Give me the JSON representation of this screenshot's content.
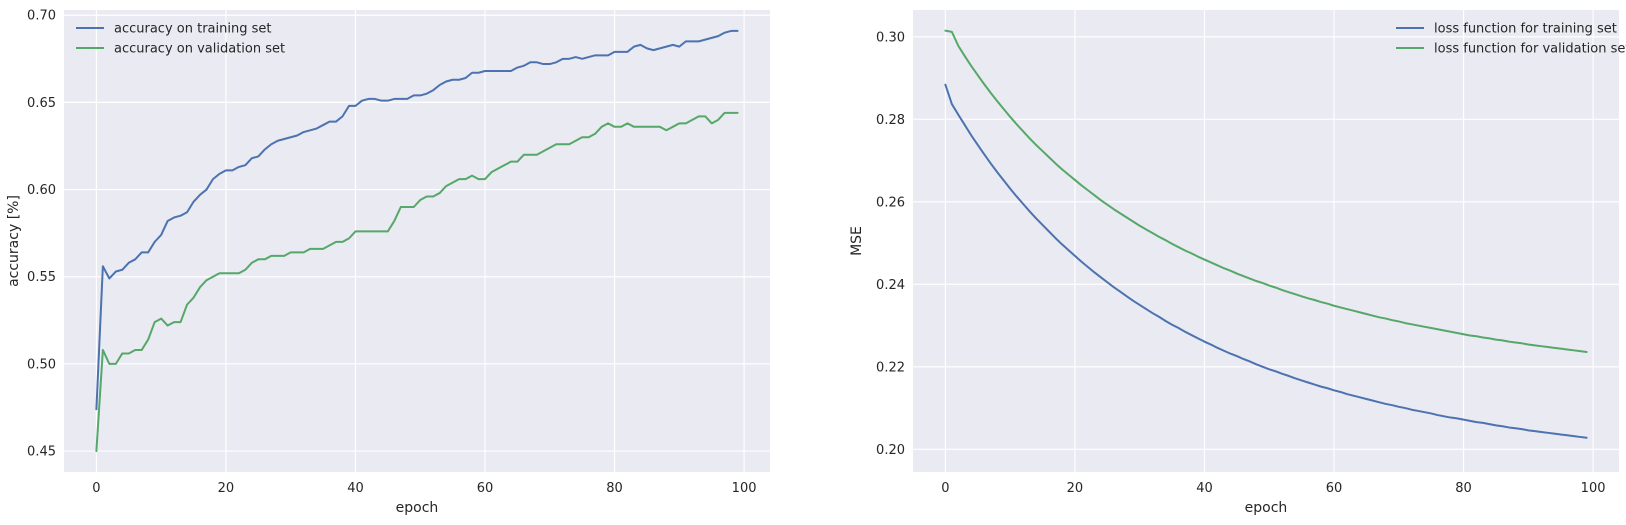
{
  "colors": {
    "background": "#eaeaf2",
    "grid": "#ffffff",
    "training": "#4c72b0",
    "validation": "#55a868"
  },
  "chart_data": [
    {
      "type": "line",
      "grid": true,
      "legend_position": "top-left",
      "xlabel": "epoch",
      "ylabel": "accuracy [%]",
      "xlim": [
        -5,
        104
      ],
      "ylim": [
        0.438,
        0.703
      ],
      "xticks": [
        0,
        20,
        40,
        60,
        80,
        100
      ],
      "xtick_labels": [
        "0",
        "20",
        "40",
        "60",
        "80",
        "100"
      ],
      "yticks": [
        0.45,
        0.5,
        0.55,
        0.6,
        0.65,
        0.7
      ],
      "ytick_labels": [
        "0.45",
        "0.50",
        "0.55",
        "0.60",
        "0.65",
        "0.70"
      ],
      "x": [
        0,
        1,
        2,
        3,
        4,
        5,
        6,
        7,
        8,
        9,
        10,
        11,
        12,
        13,
        14,
        15,
        16,
        17,
        18,
        19,
        20,
        21,
        22,
        23,
        24,
        25,
        26,
        27,
        28,
        29,
        30,
        31,
        32,
        33,
        34,
        35,
        36,
        37,
        38,
        39,
        40,
        41,
        42,
        43,
        44,
        45,
        46,
        47,
        48,
        49,
        50,
        51,
        52,
        53,
        54,
        55,
        56,
        57,
        58,
        59,
        60,
        61,
        62,
        63,
        64,
        65,
        66,
        67,
        68,
        69,
        70,
        71,
        72,
        73,
        74,
        75,
        76,
        77,
        78,
        79,
        80,
        81,
        82,
        83,
        84,
        85,
        86,
        87,
        88,
        89,
        90,
        91,
        92,
        93,
        94,
        95,
        96,
        97,
        98,
        99
      ],
      "series": [
        {
          "name": "accuracy on training set",
          "color_key": "training",
          "values": [
            0.474,
            0.556,
            0.549,
            0.553,
            0.554,
            0.558,
            0.56,
            0.564,
            0.564,
            0.57,
            0.574,
            0.582,
            0.584,
            0.585,
            0.587,
            0.593,
            0.597,
            0.6,
            0.606,
            0.609,
            0.611,
            0.611,
            0.613,
            0.614,
            0.618,
            0.619,
            0.623,
            0.626,
            0.628,
            0.629,
            0.63,
            0.631,
            0.633,
            0.634,
            0.635,
            0.637,
            0.639,
            0.639,
            0.642,
            0.648,
            0.648,
            0.651,
            0.652,
            0.652,
            0.651,
            0.651,
            0.652,
            0.652,
            0.652,
            0.654,
            0.654,
            0.655,
            0.657,
            0.66,
            0.662,
            0.663,
            0.663,
            0.664,
            0.667,
            0.667,
            0.668,
            0.668,
            0.668,
            0.668,
            0.668,
            0.67,
            0.671,
            0.673,
            0.673,
            0.672,
            0.672,
            0.673,
            0.675,
            0.675,
            0.676,
            0.675,
            0.676,
            0.677,
            0.677,
            0.677,
            0.679,
            0.679,
            0.679,
            0.682,
            0.683,
            0.681,
            0.68,
            0.681,
            0.682,
            0.683,
            0.682,
            0.685,
            0.685,
            0.685,
            0.686,
            0.687,
            0.688,
            0.69,
            0.691,
            0.691
          ]
        },
        {
          "name": "accuracy on validation set",
          "color_key": "validation",
          "values": [
            0.45,
            0.508,
            0.5,
            0.5,
            0.506,
            0.506,
            0.508,
            0.508,
            0.514,
            0.524,
            0.526,
            0.522,
            0.524,
            0.524,
            0.534,
            0.538,
            0.544,
            0.548,
            0.55,
            0.552,
            0.552,
            0.552,
            0.552,
            0.554,
            0.558,
            0.56,
            0.56,
            0.562,
            0.562,
            0.562,
            0.564,
            0.564,
            0.564,
            0.566,
            0.566,
            0.566,
            0.568,
            0.57,
            0.57,
            0.572,
            0.576,
            0.576,
            0.576,
            0.576,
            0.576,
            0.576,
            0.582,
            0.59,
            0.59,
            0.59,
            0.594,
            0.596,
            0.596,
            0.598,
            0.602,
            0.604,
            0.606,
            0.606,
            0.608,
            0.606,
            0.606,
            0.61,
            0.612,
            0.614,
            0.616,
            0.616,
            0.62,
            0.62,
            0.62,
            0.622,
            0.624,
            0.626,
            0.626,
            0.626,
            0.628,
            0.63,
            0.63,
            0.632,
            0.636,
            0.638,
            0.636,
            0.636,
            0.638,
            0.636,
            0.636,
            0.636,
            0.636,
            0.636,
            0.634,
            0.636,
            0.638,
            0.638,
            0.64,
            0.642,
            0.642,
            0.638,
            0.64,
            0.644,
            0.644,
            0.644
          ]
        }
      ]
    },
    {
      "type": "line",
      "grid": true,
      "legend_position": "top-right",
      "xlabel": "epoch",
      "ylabel": "MSE",
      "xlim": [
        -5,
        104
      ],
      "ylim": [
        0.1945,
        0.3065
      ],
      "xticks": [
        0,
        20,
        40,
        60,
        80,
        100
      ],
      "xtick_labels": [
        "0",
        "20",
        "40",
        "60",
        "80",
        "100"
      ],
      "yticks": [
        0.2,
        0.22,
        0.24,
        0.26,
        0.28,
        0.3
      ],
      "ytick_labels": [
        "0.20",
        "0.22",
        "0.24",
        "0.26",
        "0.28",
        "0.30"
      ],
      "x": [
        0,
        1,
        2,
        3,
        4,
        5,
        6,
        7,
        8,
        9,
        10,
        11,
        12,
        13,
        14,
        15,
        16,
        17,
        18,
        19,
        20,
        21,
        22,
        23,
        24,
        25,
        26,
        27,
        28,
        29,
        30,
        31,
        32,
        33,
        34,
        35,
        36,
        37,
        38,
        39,
        40,
        41,
        42,
        43,
        44,
        45,
        46,
        47,
        48,
        49,
        50,
        51,
        52,
        53,
        54,
        55,
        56,
        57,
        58,
        59,
        60,
        61,
        62,
        63,
        64,
        65,
        66,
        67,
        68,
        69,
        70,
        71,
        72,
        73,
        74,
        75,
        76,
        77,
        78,
        79,
        80,
        81,
        82,
        83,
        84,
        85,
        86,
        87,
        88,
        89,
        90,
        91,
        92,
        93,
        94,
        95,
        96,
        97,
        98,
        99
      ],
      "series": [
        {
          "name": "loss function for training set",
          "color_key": "training",
          "values": [
            0.2884,
            0.2837,
            0.2811,
            0.2786,
            0.2761,
            0.2738,
            0.2715,
            0.2693,
            0.2672,
            0.2652,
            0.2632,
            0.2613,
            0.2595,
            0.2577,
            0.256,
            0.2544,
            0.2528,
            0.2512,
            0.2497,
            0.2483,
            0.2469,
            0.2455,
            0.2442,
            0.2429,
            0.2417,
            0.2405,
            0.2393,
            0.2382,
            0.2371,
            0.236,
            0.235,
            0.234,
            0.233,
            0.2321,
            0.2311,
            0.2302,
            0.2294,
            0.2285,
            0.2277,
            0.2269,
            0.2261,
            0.2254,
            0.2246,
            0.2239,
            0.2232,
            0.2226,
            0.2219,
            0.2213,
            0.2206,
            0.22,
            0.2194,
            0.2189,
            0.2183,
            0.2178,
            0.2172,
            0.2167,
            0.2162,
            0.2157,
            0.2152,
            0.2148,
            0.2143,
            0.2139,
            0.2134,
            0.213,
            0.2126,
            0.2122,
            0.2118,
            0.2114,
            0.211,
            0.2107,
            0.2103,
            0.21,
            0.2096,
            0.2093,
            0.209,
            0.2087,
            0.2083,
            0.208,
            0.2077,
            0.2075,
            0.2072,
            0.2069,
            0.2066,
            0.2064,
            0.2061,
            0.2058,
            0.2056,
            0.2053,
            0.2051,
            0.2049,
            0.2046,
            0.2044,
            0.2042,
            0.204,
            0.2038,
            0.2036,
            0.2034,
            0.2032,
            0.203,
            0.2028
          ]
        },
        {
          "name": "loss function for validation set",
          "color_key": "validation",
          "values": [
            0.3015,
            0.3012,
            0.2978,
            0.2953,
            0.2929,
            0.2907,
            0.2885,
            0.2864,
            0.2844,
            0.2825,
            0.2806,
            0.2788,
            0.2771,
            0.2754,
            0.2738,
            0.2723,
            0.2708,
            0.2693,
            0.2679,
            0.2666,
            0.2653,
            0.264,
            0.2628,
            0.2616,
            0.2604,
            0.2593,
            0.2582,
            0.2572,
            0.2562,
            0.2552,
            0.2542,
            0.2533,
            0.2524,
            0.2515,
            0.2507,
            0.2498,
            0.249,
            0.2482,
            0.2475,
            0.2467,
            0.246,
            0.2453,
            0.2446,
            0.2439,
            0.2433,
            0.2426,
            0.242,
            0.2414,
            0.2408,
            0.2403,
            0.2397,
            0.2392,
            0.2386,
            0.2381,
            0.2376,
            0.2371,
            0.2366,
            0.2362,
            0.2357,
            0.2353,
            0.2348,
            0.2344,
            0.234,
            0.2336,
            0.2332,
            0.2328,
            0.2324,
            0.232,
            0.2317,
            0.2313,
            0.231,
            0.2306,
            0.2303,
            0.23,
            0.2297,
            0.2294,
            0.2291,
            0.2288,
            0.2285,
            0.2282,
            0.2279,
            0.2276,
            0.2274,
            0.2271,
            0.2269,
            0.2266,
            0.2264,
            0.2261,
            0.2259,
            0.2257,
            0.2254,
            0.2252,
            0.225,
            0.2248,
            0.2246,
            0.2244,
            0.2242,
            0.224,
            0.2238,
            0.2236
          ]
        }
      ]
    }
  ]
}
